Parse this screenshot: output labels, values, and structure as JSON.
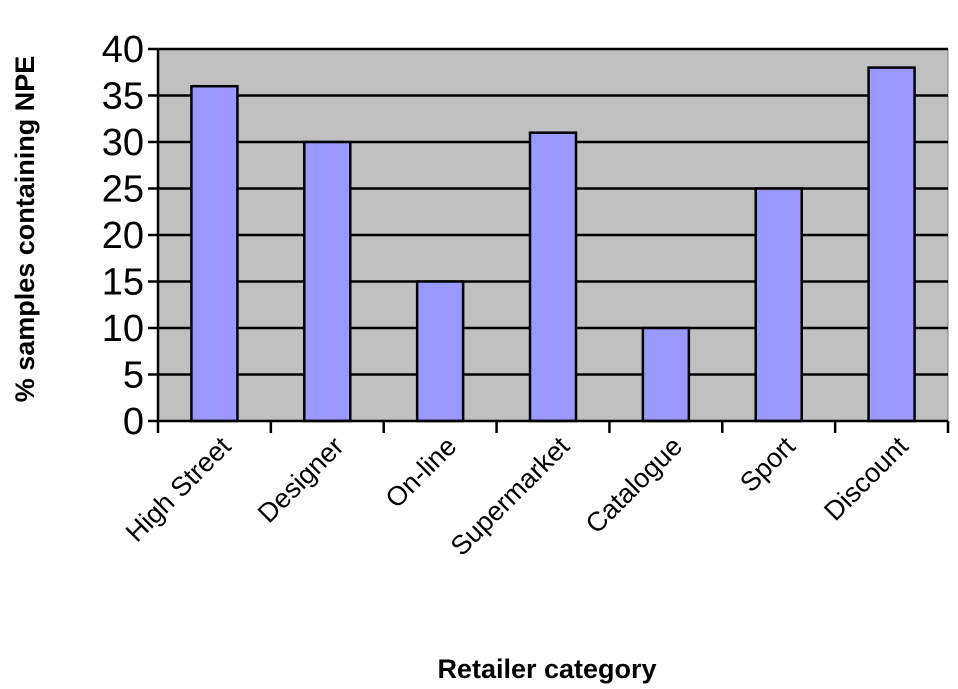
{
  "chart_data": {
    "type": "bar",
    "categories": [
      "High Street",
      "Designer",
      "On-line",
      "Supermarket",
      "Catalogue",
      "Sport",
      "Discount"
    ],
    "values": [
      36,
      30,
      15,
      31,
      10,
      25,
      38
    ],
    "xlabel": "Retailer category",
    "ylabel": "% samples containing NPE",
    "ylim": [
      0,
      40
    ],
    "yticks": [
      0,
      5,
      10,
      15,
      20,
      25,
      30,
      35,
      40
    ],
    "grid": "horizontal",
    "colors": {
      "plot_background": "#c0c0c0",
      "bar_fill": "#9999ff",
      "bar_stroke": "#000000",
      "gridline": "#000000"
    }
  }
}
